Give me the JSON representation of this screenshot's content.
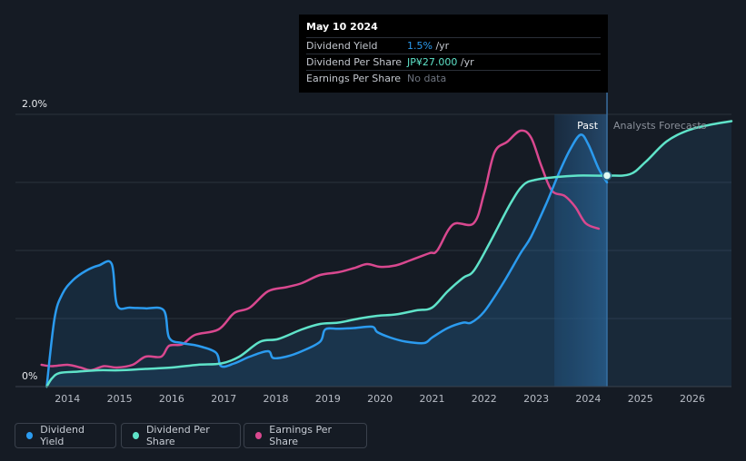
{
  "tooltip": {
    "date": "May 10 2024",
    "rows": [
      {
        "label": "Dividend Yield",
        "value": "1.5%",
        "unit": " /yr"
      },
      {
        "label": "Dividend Per Share",
        "value": "JP¥27.000",
        "unit": " /yr"
      },
      {
        "label": "Earnings Per Share",
        "value": "No data",
        "unit": ""
      }
    ]
  },
  "legend": {
    "items": [
      {
        "label": "Dividend Yield",
        "color": "#2b9bef"
      },
      {
        "label": "Dividend Per Share",
        "color": "#5fe3c9"
      },
      {
        "label": "Earnings Per Share",
        "color": "#d9488f"
      }
    ]
  },
  "chart_data": {
    "type": "line",
    "title": "",
    "xlabel": "",
    "ylabel": "",
    "x_ticks": [
      "2014",
      "2015",
      "2016",
      "2017",
      "2018",
      "2019",
      "2020",
      "2021",
      "2022",
      "2023",
      "2024",
      "2025",
      "2026"
    ],
    "y_ticks": [
      "0%",
      "2.0%"
    ],
    "xlim": [
      2013.0,
      2026.75
    ],
    "ylim": [
      0,
      2.0
    ],
    "past_label": "Past",
    "forecast_label": "Analysts Forecasts",
    "past_region": [
      2023.35,
      2024.36
    ],
    "marker": {
      "x": 2024.36,
      "series": "Dividend Per Share",
      "value": 1.55
    },
    "series": [
      {
        "name": "Dividend Yield",
        "color": "#2b9bef",
        "points": [
          [
            2013.6,
            0.0
          ],
          [
            2013.75,
            0.5
          ],
          [
            2013.9,
            0.68
          ],
          [
            2014.1,
            0.78
          ],
          [
            2014.35,
            0.85
          ],
          [
            2014.6,
            0.89
          ],
          [
            2014.85,
            0.9
          ],
          [
            2014.95,
            0.6
          ],
          [
            2015.2,
            0.58
          ],
          [
            2015.5,
            0.575
          ],
          [
            2015.85,
            0.56
          ],
          [
            2015.95,
            0.36
          ],
          [
            2016.2,
            0.32
          ],
          [
            2016.5,
            0.3
          ],
          [
            2016.85,
            0.25
          ],
          [
            2016.95,
            0.15
          ],
          [
            2017.2,
            0.17
          ],
          [
            2017.5,
            0.22
          ],
          [
            2017.85,
            0.26
          ],
          [
            2017.95,
            0.21
          ],
          [
            2018.2,
            0.22
          ],
          [
            2018.5,
            0.26
          ],
          [
            2018.85,
            0.33
          ],
          [
            2018.95,
            0.42
          ],
          [
            2019.2,
            0.425
          ],
          [
            2019.5,
            0.43
          ],
          [
            2019.85,
            0.44
          ],
          [
            2019.95,
            0.4
          ],
          [
            2020.2,
            0.36
          ],
          [
            2020.5,
            0.33
          ],
          [
            2020.85,
            0.32
          ],
          [
            2021.0,
            0.36
          ],
          [
            2021.3,
            0.43
          ],
          [
            2021.6,
            0.47
          ],
          [
            2021.75,
            0.47
          ],
          [
            2022.0,
            0.55
          ],
          [
            2022.35,
            0.75
          ],
          [
            2022.7,
            0.98
          ],
          [
            2022.9,
            1.1
          ],
          [
            2023.2,
            1.35
          ],
          [
            2023.45,
            1.58
          ],
          [
            2023.65,
            1.74
          ],
          [
            2023.85,
            1.85
          ],
          [
            2024.0,
            1.78
          ],
          [
            2024.2,
            1.6
          ],
          [
            2024.36,
            1.5
          ]
        ]
      },
      {
        "name": "Dividend Per Share",
        "color": "#5fe3c9",
        "points": [
          [
            2013.6,
            0.0
          ],
          [
            2013.7,
            0.06
          ],
          [
            2013.85,
            0.1
          ],
          [
            2014.2,
            0.11
          ],
          [
            2014.6,
            0.12
          ],
          [
            2015.0,
            0.12
          ],
          [
            2015.5,
            0.13
          ],
          [
            2016.0,
            0.14
          ],
          [
            2016.5,
            0.16
          ],
          [
            2016.95,
            0.17
          ],
          [
            2017.3,
            0.22
          ],
          [
            2017.7,
            0.33
          ],
          [
            2018.05,
            0.35
          ],
          [
            2018.5,
            0.42
          ],
          [
            2018.85,
            0.46
          ],
          [
            2019.2,
            0.47
          ],
          [
            2019.6,
            0.5
          ],
          [
            2019.95,
            0.52
          ],
          [
            2020.3,
            0.53
          ],
          [
            2020.7,
            0.56
          ],
          [
            2021.0,
            0.58
          ],
          [
            2021.3,
            0.7
          ],
          [
            2021.6,
            0.8
          ],
          [
            2021.8,
            0.85
          ],
          [
            2022.1,
            1.05
          ],
          [
            2022.5,
            1.34
          ],
          [
            2022.75,
            1.48
          ],
          [
            2023.0,
            1.52
          ],
          [
            2023.4,
            1.54
          ],
          [
            2023.8,
            1.55
          ],
          [
            2024.36,
            1.55
          ],
          [
            2024.8,
            1.56
          ],
          [
            2025.1,
            1.65
          ],
          [
            2025.5,
            1.8
          ],
          [
            2025.9,
            1.88
          ],
          [
            2026.3,
            1.92
          ],
          [
            2026.75,
            1.95
          ]
        ]
      },
      {
        "name": "Earnings Per Share",
        "color": "#d9488f",
        "points": [
          [
            2013.5,
            0.16
          ],
          [
            2013.7,
            0.15
          ],
          [
            2014.0,
            0.16
          ],
          [
            2014.25,
            0.14
          ],
          [
            2014.45,
            0.12
          ],
          [
            2014.7,
            0.15
          ],
          [
            2014.95,
            0.14
          ],
          [
            2015.25,
            0.16
          ],
          [
            2015.5,
            0.22
          ],
          [
            2015.8,
            0.22
          ],
          [
            2015.95,
            0.3
          ],
          [
            2016.2,
            0.31
          ],
          [
            2016.45,
            0.38
          ],
          [
            2016.9,
            0.42
          ],
          [
            2017.2,
            0.54
          ],
          [
            2017.5,
            0.58
          ],
          [
            2017.85,
            0.7
          ],
          [
            2018.2,
            0.73
          ],
          [
            2018.5,
            0.76
          ],
          [
            2018.85,
            0.82
          ],
          [
            2019.2,
            0.84
          ],
          [
            2019.5,
            0.87
          ],
          [
            2019.75,
            0.9
          ],
          [
            2020.0,
            0.88
          ],
          [
            2020.3,
            0.89
          ],
          [
            2020.6,
            0.93
          ],
          [
            2020.95,
            0.98
          ],
          [
            2021.1,
            1.0
          ],
          [
            2021.4,
            1.19
          ],
          [
            2021.8,
            1.2
          ],
          [
            2022.0,
            1.42
          ],
          [
            2022.2,
            1.72
          ],
          [
            2022.45,
            1.8
          ],
          [
            2022.7,
            1.88
          ],
          [
            2022.9,
            1.83
          ],
          [
            2023.1,
            1.62
          ],
          [
            2023.3,
            1.44
          ],
          [
            2023.55,
            1.4
          ],
          [
            2023.75,
            1.32
          ],
          [
            2023.95,
            1.2
          ],
          [
            2024.2,
            1.16
          ]
        ]
      }
    ]
  }
}
